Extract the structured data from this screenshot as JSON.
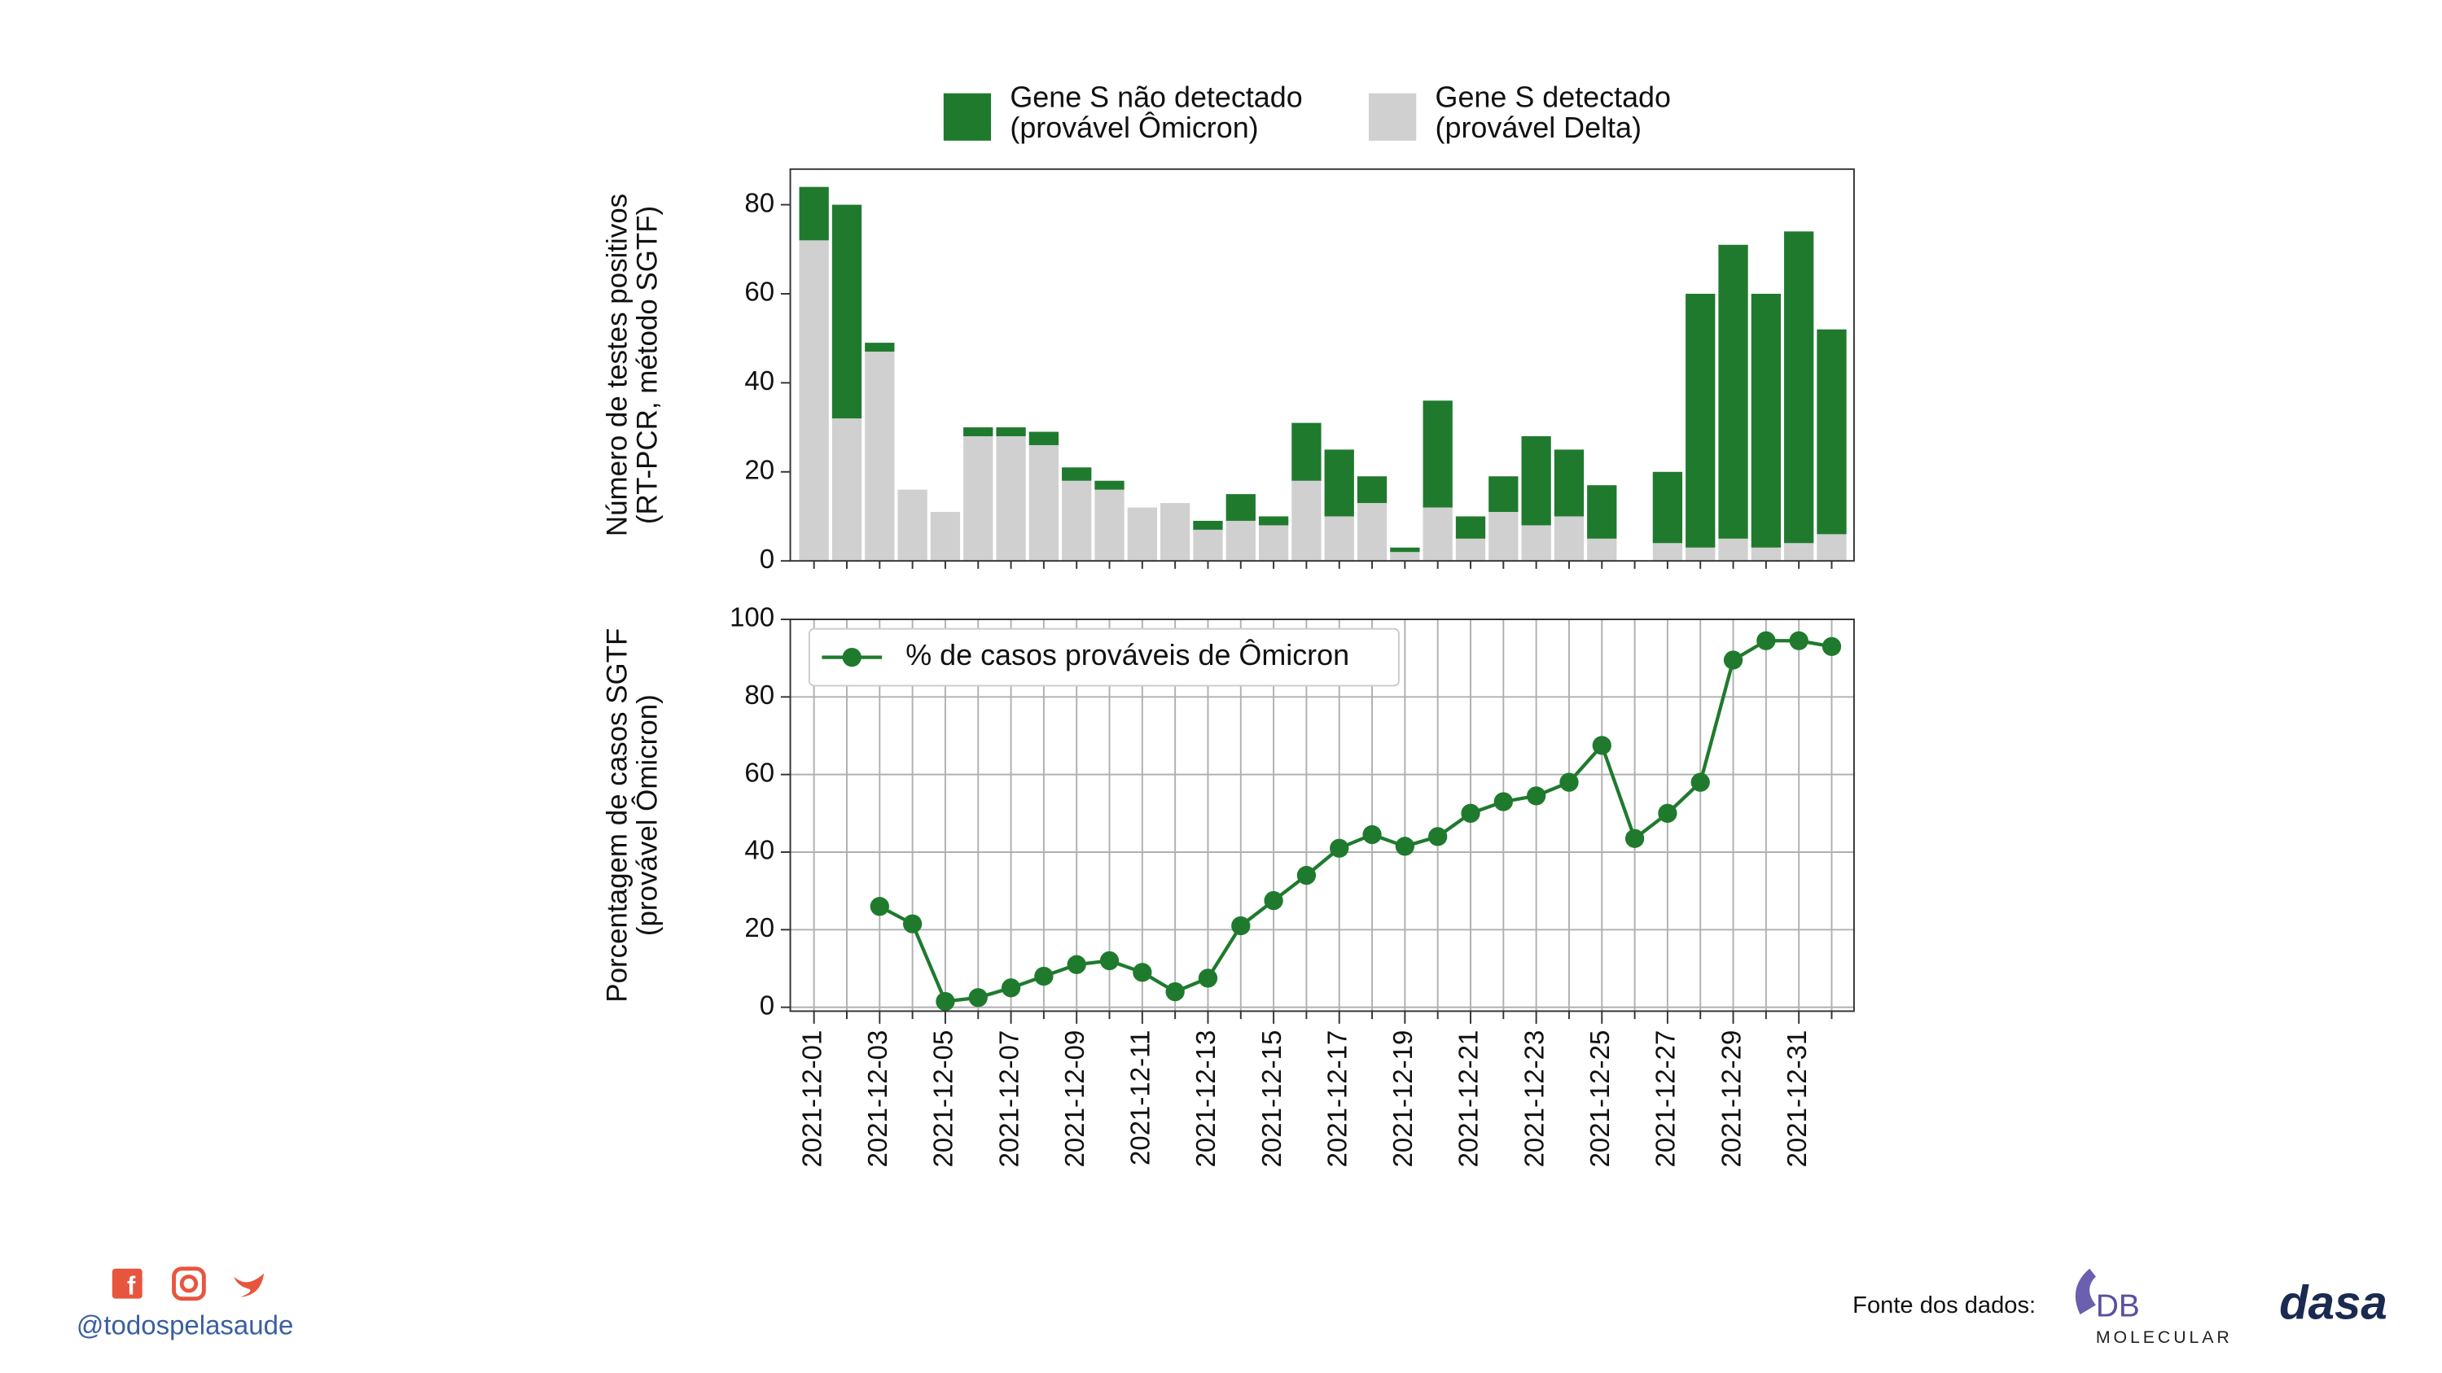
{
  "chart_data": [
    {
      "type": "stacked_bar",
      "ylabel": "Número de testes positivos\n(RT-PCR, método SGTF)",
      "ylim": [
        0,
        88
      ],
      "yticks": [
        0,
        20,
        40,
        60,
        80
      ],
      "legend": "top",
      "series": [
        {
          "name": "Gene S detectado\n(provável Delta)",
          "color": "#d0d0d0",
          "values": [
            72,
            32,
            47,
            16,
            11,
            28,
            28,
            26,
            18,
            16,
            12,
            13,
            7,
            9,
            8,
            18,
            10,
            13,
            2,
            12,
            5,
            11,
            8,
            10,
            5,
            0,
            4,
            3,
            5,
            3,
            4,
            6
          ]
        },
        {
          "name": "Gene S não detectado\n(provável Ômicron)",
          "color": "#1f7a2e",
          "values": [
            12,
            48,
            2,
            0,
            0,
            2,
            2,
            3,
            3,
            2,
            0,
            0,
            2,
            6,
            2,
            13,
            15,
            6,
            1,
            24,
            5,
            8,
            20,
            15,
            12,
            0,
            16,
            57,
            66,
            57,
            70,
            46
          ]
        }
      ]
    },
    {
      "type": "line",
      "ylabel": "Porcentagem de casos SGTF\n(provável Ômicron)",
      "ylim": [
        -1,
        100
      ],
      "yticks": [
        0,
        20,
        40,
        60,
        80,
        100
      ],
      "grid": true,
      "legend": "upper left",
      "categories": [
        "2021-12-01",
        null,
        "2021-12-03",
        null,
        "2021-12-05",
        null,
        "2021-12-07",
        null,
        "2021-12-09",
        null,
        "2021-12-11",
        null,
        "2021-12-13",
        null,
        "2021-12-15",
        null,
        "2021-12-17",
        null,
        "2021-12-19",
        null,
        "2021-12-21",
        null,
        "2021-12-23",
        null,
        "2021-12-25",
        null,
        "2021-12-27",
        null,
        "2021-12-29",
        null,
        "2021-12-31",
        null
      ],
      "series": [
        {
          "name": "% de casos prováveis de Ômicron",
          "color": "#1f7a2e",
          "values": [
            null,
            null,
            26,
            21.5,
            1.5,
            2.5,
            5,
            8,
            11,
            12,
            9,
            4,
            7.5,
            21,
            27.5,
            34,
            41,
            44.5,
            41.5,
            44,
            50,
            53,
            54.5,
            58,
            67.5,
            43.5,
            50,
            58,
            89.5,
            94.5,
            94.5,
            93
          ]
        }
      ]
    }
  ],
  "footer": {
    "handle": "@todospelasaude",
    "source": "Fonte dos dados:",
    "logo1": "DB",
    "logo1_sub": "MOLECULAR",
    "logo2": "dasa"
  }
}
